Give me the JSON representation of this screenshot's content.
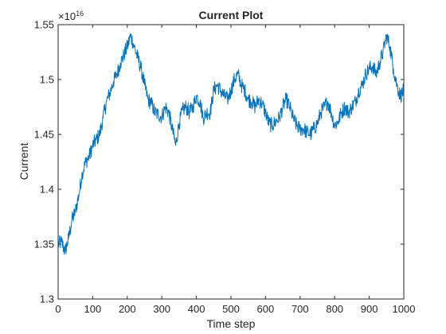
{
  "chart_data": {
    "type": "line",
    "title": "Current Plot",
    "xlabel": "Time step",
    "ylabel": "Current",
    "exponent_label": "×10",
    "exponent_power": "16",
    "xlim": [
      0,
      1000
    ],
    "ylim": [
      1.3,
      1.55
    ],
    "x_ticks": [
      0,
      100,
      200,
      300,
      400,
      500,
      600,
      700,
      800,
      900,
      1000
    ],
    "x_tick_labels": [
      "0",
      "100",
      "200",
      "300",
      "400",
      "500",
      "600",
      "700",
      "800",
      "900",
      "1000"
    ],
    "y_ticks": [
      1.3,
      1.35,
      1.4,
      1.45,
      1.5,
      1.55
    ],
    "y_tick_labels": [
      "1.3",
      "1.35",
      "1.4",
      "1.45",
      "1.5",
      "1.55"
    ],
    "grid": false,
    "line_color": "#0072BD",
    "series": [
      {
        "anchors": [
          [
            0,
            1.35
          ],
          [
            10,
            1.352
          ],
          [
            20,
            1.343
          ],
          [
            30,
            1.355
          ],
          [
            40,
            1.372
          ],
          [
            50,
            1.38
          ],
          [
            60,
            1.395
          ],
          [
            70,
            1.415
          ],
          [
            80,
            1.425
          ],
          [
            90,
            1.43
          ],
          [
            100,
            1.44
          ],
          [
            110,
            1.445
          ],
          [
            120,
            1.45
          ],
          [
            130,
            1.465
          ],
          [
            140,
            1.48
          ],
          [
            150,
            1.488
          ],
          [
            160,
            1.498
          ],
          [
            170,
            1.505
          ],
          [
            180,
            1.515
          ],
          [
            190,
            1.522
          ],
          [
            200,
            1.53
          ],
          [
            210,
            1.54
          ],
          [
            220,
            1.53
          ],
          [
            230,
            1.52
          ],
          [
            240,
            1.51
          ],
          [
            250,
            1.495
          ],
          [
            260,
            1.482
          ],
          [
            270,
            1.478
          ],
          [
            280,
            1.47
          ],
          [
            290,
            1.468
          ],
          [
            300,
            1.466
          ],
          [
            310,
            1.475
          ],
          [
            320,
            1.47
          ],
          [
            330,
            1.455
          ],
          [
            340,
            1.44
          ],
          [
            350,
            1.46
          ],
          [
            360,
            1.472
          ],
          [
            370,
            1.475
          ],
          [
            380,
            1.47
          ],
          [
            390,
            1.475
          ],
          [
            400,
            1.485
          ],
          [
            410,
            1.48
          ],
          [
            420,
            1.465
          ],
          [
            430,
            1.47
          ],
          [
            440,
            1.47
          ],
          [
            450,
            1.49
          ],
          [
            460,
            1.495
          ],
          [
            470,
            1.49
          ],
          [
            480,
            1.485
          ],
          [
            490,
            1.482
          ],
          [
            500,
            1.49
          ],
          [
            510,
            1.5
          ],
          [
            520,
            1.505
          ],
          [
            530,
            1.495
          ],
          [
            540,
            1.49
          ],
          [
            550,
            1.482
          ],
          [
            560,
            1.48
          ],
          [
            570,
            1.475
          ],
          [
            580,
            1.482
          ],
          [
            590,
            1.478
          ],
          [
            600,
            1.47
          ],
          [
            610,
            1.46
          ],
          [
            620,
            1.458
          ],
          [
            630,
            1.462
          ],
          [
            640,
            1.465
          ],
          [
            650,
            1.475
          ],
          [
            660,
            1.482
          ],
          [
            670,
            1.475
          ],
          [
            680,
            1.465
          ],
          [
            690,
            1.458
          ],
          [
            700,
            1.455
          ],
          [
            710,
            1.455
          ],
          [
            720,
            1.452
          ],
          [
            730,
            1.45
          ],
          [
            740,
            1.455
          ],
          [
            750,
            1.46
          ],
          [
            760,
            1.47
          ],
          [
            770,
            1.475
          ],
          [
            780,
            1.48
          ],
          [
            790,
            1.47
          ],
          [
            800,
            1.458
          ],
          [
            810,
            1.462
          ],
          [
            820,
            1.47
          ],
          [
            830,
            1.475
          ],
          [
            840,
            1.47
          ],
          [
            850,
            1.475
          ],
          [
            860,
            1.48
          ],
          [
            870,
            1.49
          ],
          [
            880,
            1.495
          ],
          [
            890,
            1.505
          ],
          [
            900,
            1.51
          ],
          [
            910,
            1.512
          ],
          [
            920,
            1.505
          ],
          [
            930,
            1.515
          ],
          [
            940,
            1.525
          ],
          [
            950,
            1.54
          ],
          [
            960,
            1.53
          ],
          [
            970,
            1.51
          ],
          [
            980,
            1.495
          ],
          [
            990,
            1.485
          ],
          [
            1000,
            1.49
          ]
        ]
      }
    ]
  }
}
